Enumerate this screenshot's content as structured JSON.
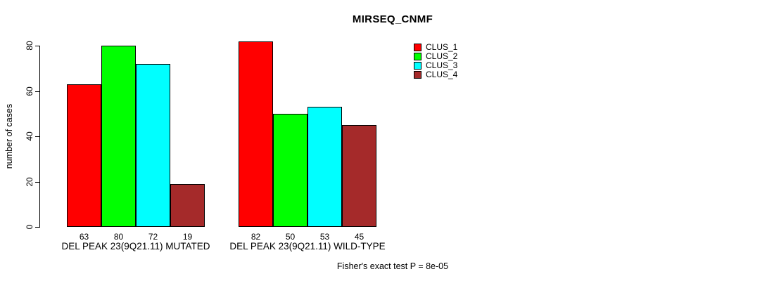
{
  "title": "MIRSEQ_CNMF",
  "y_axis": {
    "label": "number of cases"
  },
  "footer": "Fisher's exact test P = 8e-05",
  "chart_data": {
    "type": "bar",
    "title": "MIRSEQ_CNMF",
    "xlabel": "",
    "ylabel": "number of cases",
    "ylim": [
      0,
      80
    ],
    "yticks": [
      0,
      20,
      40,
      60,
      80
    ],
    "grid": false,
    "legend_position": "right",
    "bar_outline_color": "#000000",
    "background_color": "#ffffff",
    "categories": [
      "DEL PEAK 23(9Q21.11) MUTATED",
      "DEL PEAK 23(9Q21.11) WILD-TYPE"
    ],
    "series": [
      {
        "name": "CLUS_1",
        "color": "#FF0000",
        "values": [
          63,
          82
        ]
      },
      {
        "name": "CLUS_2",
        "color": "#00FF00",
        "values": [
          80,
          50
        ]
      },
      {
        "name": "CLUS_3",
        "color": "#00FFFF",
        "values": [
          72,
          53
        ]
      },
      {
        "name": "CLUS_4",
        "color": "#A52A2A",
        "values": [
          19,
          45
        ]
      }
    ],
    "value_labels_shown": true,
    "annotation": "Fisher's exact test P = 8e-05"
  }
}
